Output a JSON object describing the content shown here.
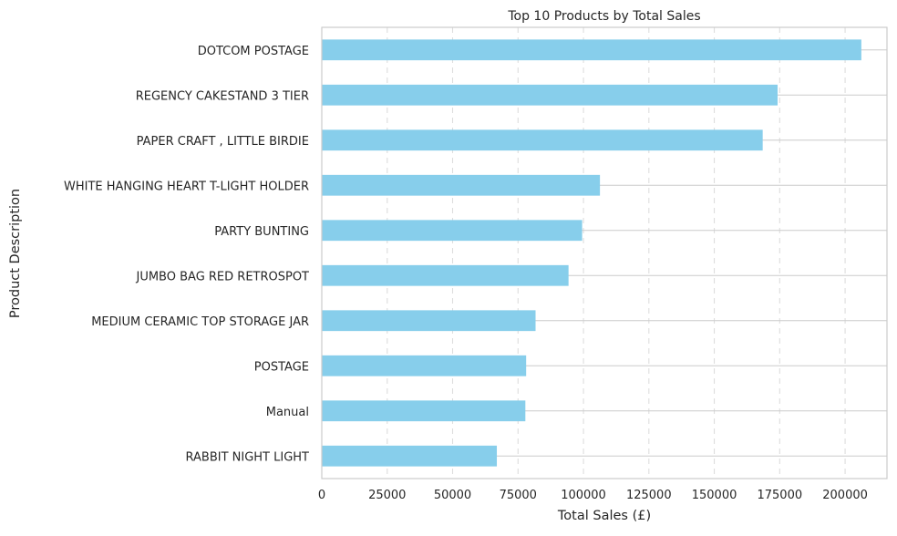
{
  "chart_data": {
    "type": "bar",
    "orientation": "horizontal",
    "title": "Top 10 Products by Total Sales",
    "xlabel": "Total Sales (£)",
    "ylabel": "Product Description",
    "xlim": [
      0,
      216000
    ],
    "xticks": [
      0,
      25000,
      50000,
      75000,
      100000,
      125000,
      150000,
      175000,
      200000
    ],
    "grid": {
      "x": "dashed",
      "y": "solid"
    },
    "bar_color": "#87CEEB",
    "categories": [
      "DOTCOM POSTAGE",
      "REGENCY CAKESTAND 3 TIER",
      "PAPER CRAFT , LITTLE BIRDIE",
      "WHITE HANGING HEART T-LIGHT HOLDER",
      "PARTY BUNTING",
      "JUMBO BAG RED RETROSPOT",
      "MEDIUM CERAMIC TOP STORAGE JAR",
      "POSTAGE",
      "Manual",
      "RABBIT NIGHT LIGHT"
    ],
    "values": [
      206200,
      174200,
      168500,
      106300,
      99500,
      94300,
      81700,
      78100,
      77800,
      66900
    ]
  }
}
